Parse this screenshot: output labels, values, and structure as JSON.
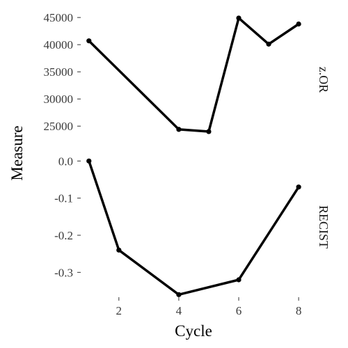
{
  "chart_data": {
    "type": "line",
    "xlabel": "Cycle",
    "ylabel": "Measure",
    "x_ticks": [
      2,
      4,
      6,
      8
    ],
    "xlim": [
      0.75,
      8.3
    ],
    "grid": false,
    "panels": [
      {
        "strip_label": "z.OR",
        "ylim": [
          20800,
          46300
        ],
        "y_ticks": [
          25000,
          30000,
          35000,
          40000,
          45000
        ],
        "y_tick_labels": [
          "25000",
          "30000",
          "35000",
          "40000",
          "45000"
        ],
        "x": [
          1,
          4,
          5,
          6,
          7,
          8
        ],
        "values": [
          40700,
          24400,
          24000,
          44900,
          40100,
          43800
        ]
      },
      {
        "strip_label": "RECIST",
        "ylim": [
          -0.365,
          0.01
        ],
        "y_ticks": [
          0.0,
          -0.1,
          -0.2,
          -0.3
        ],
        "y_tick_labels": [
          "0.0",
          "-0.1",
          "-0.2",
          "-0.3"
        ],
        "x": [
          1,
          2,
          4,
          6,
          8
        ],
        "values": [
          0.0,
          -0.24,
          -0.36,
          -0.32,
          -0.07
        ]
      }
    ]
  }
}
